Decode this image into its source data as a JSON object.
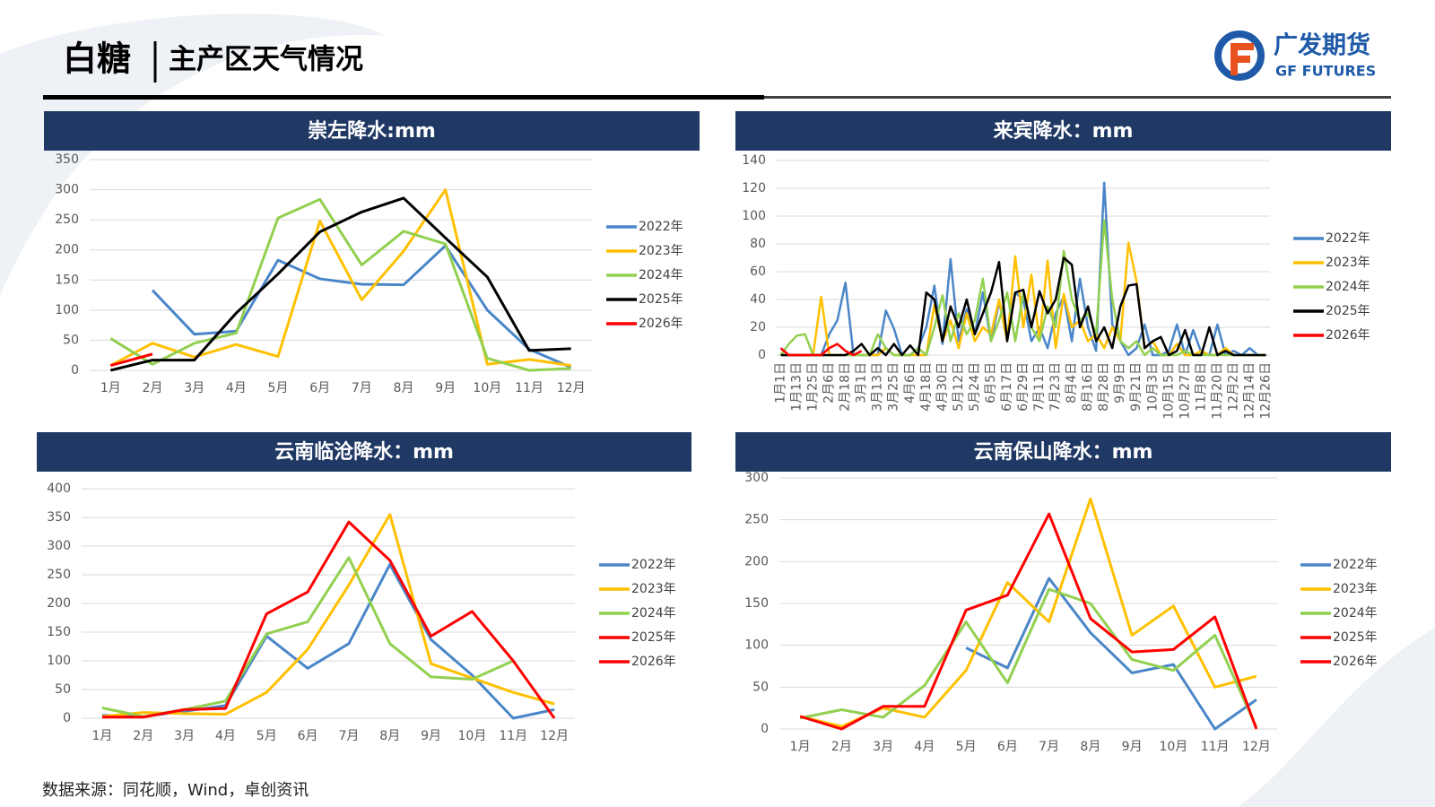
{
  "header": {
    "title": "白糖",
    "subtitle": "主产区天气情况",
    "logo": "广发期货",
    "logo_en": "GF FUTURES"
  },
  "source": "数据来源：同花顺，Wind，卓创资讯",
  "chart_data": [
    {
      "type": "line",
      "title": "崇左降水:mm",
      "categories": [
        "1月",
        "2月",
        "3月",
        "4月",
        "5月",
        "6月",
        "7月",
        "8月",
        "9月",
        "10月",
        "11月",
        "12月"
      ],
      "ylim": [
        0,
        350
      ],
      "yticks": [
        0,
        50,
        100,
        150,
        200,
        250,
        300,
        350
      ],
      "grid": true,
      "legend": "right",
      "series": [
        {
          "name": "2022年",
          "color": "#4a86c8",
          "values": [
            null,
            133,
            60,
            65,
            183,
            152,
            143,
            142,
            207,
            100,
            35,
            5
          ]
        },
        {
          "name": "2023年",
          "color": "#ffc000",
          "values": [
            8,
            45,
            22,
            43,
            23,
            248,
            117,
            198,
            300,
            10,
            18,
            8
          ]
        },
        {
          "name": "2024年",
          "color": "#92d050",
          "values": [
            53,
            10,
            45,
            62,
            253,
            284,
            175,
            231,
            210,
            20,
            0,
            3
          ]
        },
        {
          "name": "2025年",
          "color": "#000000",
          "values": [
            0,
            17,
            17,
            95,
            160,
            230,
            263,
            286,
            220,
            155,
            33,
            36
          ]
        },
        {
          "name": "2026年",
          "color": "#ff0000",
          "values": [
            8,
            27,
            null,
            null,
            null,
            null,
            null,
            null,
            null,
            null,
            null,
            null
          ]
        }
      ]
    },
    {
      "type": "line",
      "title": "来宾降水：mm",
      "categories": [
        "1月1日",
        null,
        "1月13日",
        null,
        "1月25日",
        null,
        "2月6日",
        null,
        "2月18日",
        null,
        "3月1日",
        null,
        "3月13日",
        null,
        "3月25日",
        null,
        "4月6日",
        null,
        "4月18日",
        null,
        "4月30日",
        null,
        "5月12日",
        null,
        "5月24日",
        null,
        "6月5日",
        null,
        "6月17日",
        null,
        "6月29日",
        null,
        "7月11日",
        null,
        "7月23日",
        null,
        "8月4日",
        null,
        "8月16日",
        null,
        "8月28日",
        null,
        "9月9日",
        null,
        "9月21日",
        null,
        "10月3日",
        null,
        "10月15日",
        null,
        "10月27日",
        null,
        "11月8日",
        null,
        "11月20日",
        null,
        "12月2日",
        null,
        "12月14日",
        null,
        "12月26日"
      ],
      "ylim": [
        0,
        140
      ],
      "yticks": [
        0,
        20,
        40,
        60,
        80,
        100,
        120,
        140
      ],
      "grid": true,
      "legend": "right",
      "series": [
        {
          "name": "2022年",
          "color": "#4a86c8",
          "values": [
            0,
            0,
            0,
            0,
            0,
            0,
            15,
            25,
            52,
            0,
            0,
            0,
            0,
            32,
            19,
            0,
            0,
            5,
            20,
            50,
            8,
            69,
            10,
            33,
            15,
            45,
            10,
            38,
            15,
            45,
            40,
            10,
            20,
            5,
            30,
            42,
            10,
            55,
            20,
            3,
            124,
            22,
            10,
            0,
            5,
            22,
            0,
            0,
            3,
            22,
            0,
            18,
            2,
            0,
            22,
            0,
            3,
            0,
            5,
            0,
            0
          ]
        },
        {
          "name": "2023年",
          "color": "#ffc000",
          "values": [
            0,
            0,
            0,
            0,
            0,
            42,
            0,
            0,
            0,
            0,
            0,
            0,
            0,
            5,
            0,
            0,
            0,
            0,
            0,
            36,
            10,
            25,
            5,
            30,
            10,
            20,
            15,
            40,
            10,
            71,
            20,
            58,
            10,
            68,
            5,
            44,
            20,
            25,
            10,
            15,
            5,
            20,
            10,
            81,
            53,
            5,
            10,
            0,
            0,
            8,
            0,
            0,
            3,
            0,
            0,
            5,
            0,
            0,
            0,
            0,
            0
          ]
        },
        {
          "name": "2024年",
          "color": "#92d050",
          "values": [
            0,
            8,
            14,
            15,
            0,
            0,
            0,
            0,
            0,
            0,
            0,
            0,
            15,
            5,
            0,
            0,
            0,
            5,
            0,
            20,
            43,
            10,
            30,
            15,
            25,
            55,
            10,
            25,
            45,
            10,
            45,
            20,
            10,
            35,
            20,
            75,
            40,
            25,
            30,
            15,
            97,
            40,
            10,
            5,
            10,
            0,
            5,
            0,
            0,
            0,
            3,
            0,
            0,
            0,
            0,
            0,
            0,
            0,
            0,
            0,
            0
          ]
        },
        {
          "name": "2025年",
          "color": "#000000",
          "values": [
            0,
            0,
            0,
            0,
            0,
            0,
            0,
            0,
            0,
            3,
            8,
            0,
            5,
            0,
            8,
            0,
            7,
            0,
            45,
            40,
            10,
            35,
            20,
            40,
            15,
            30,
            45,
            67,
            10,
            45,
            47,
            20,
            46,
            30,
            40,
            70,
            65,
            20,
            35,
            10,
            20,
            5,
            35,
            50,
            51,
            5,
            10,
            13,
            0,
            3,
            18,
            0,
            0,
            20,
            0,
            3,
            0,
            0,
            0,
            0,
            0
          ]
        },
        {
          "name": "2026年",
          "color": "#ff0000",
          "values": [
            5,
            0,
            0,
            0,
            0,
            0,
            5,
            8,
            3,
            0,
            3,
            null,
            null,
            null,
            null,
            null,
            null,
            null,
            null,
            null,
            null,
            null,
            null,
            null,
            null,
            null,
            null,
            null,
            null,
            null,
            null,
            null,
            null,
            null,
            null,
            null,
            null,
            null,
            null,
            null,
            null,
            null,
            null,
            null,
            null,
            null,
            null,
            null,
            null,
            null,
            null,
            null,
            null,
            null,
            null,
            null,
            null,
            null,
            null,
            null,
            null
          ]
        }
      ]
    },
    {
      "type": "line",
      "title": "云南临沧降水：mm",
      "categories": [
        "1月",
        "2月",
        "3月",
        "4月",
        "5月",
        "6月",
        "7月",
        "8月",
        "9月",
        "10月",
        "11月",
        "12月"
      ],
      "ylim": [
        0,
        400
      ],
      "yticks": [
        0,
        50,
        100,
        150,
        200,
        250,
        300,
        350,
        400
      ],
      "grid": true,
      "legend": "right",
      "series": [
        {
          "name": "2022年",
          "color": "#4a86c8",
          "values": [
            5,
            3,
            12,
            22,
            143,
            87,
            130,
            268,
            137,
            75,
            0,
            15
          ]
        },
        {
          "name": "2023年",
          "color": "#ffc000",
          "values": [
            3,
            10,
            8,
            7,
            45,
            120,
            232,
            355,
            95,
            70,
            45,
            25
          ]
        },
        {
          "name": "2024年",
          "color": "#92d050",
          "values": [
            18,
            3,
            15,
            30,
            147,
            168,
            280,
            130,
            72,
            68,
            100,
            null
          ]
        },
        {
          "name": "2025年",
          "color": "#ff0000",
          "values": [
            2,
            2,
            15,
            17,
            182,
            220,
            342,
            275,
            143,
            186,
            100,
            0
          ]
        },
        {
          "name": "2026年",
          "color": "#ff0000",
          "values": [
            5,
            null,
            null,
            null,
            null,
            null,
            null,
            null,
            null,
            null,
            null,
            null
          ]
        }
      ]
    },
    {
      "type": "line",
      "title": "云南保山降水：mm",
      "categories": [
        "1月",
        "2月",
        "3月",
        "4月",
        "5月",
        "6月",
        "7月",
        "8月",
        "9月",
        "10月",
        "11月",
        "12月"
      ],
      "ylim": [
        0,
        300
      ],
      "yticks": [
        0,
        50,
        100,
        150,
        200,
        250,
        300
      ],
      "grid": true,
      "legend": "right",
      "series": [
        {
          "name": "2022年",
          "color": "#4a86c8",
          "values": [
            null,
            null,
            null,
            null,
            97,
            73,
            180,
            115,
            67,
            77,
            0,
            35
          ]
        },
        {
          "name": "2023年",
          "color": "#ffc000",
          "values": [
            15,
            3,
            25,
            14,
            70,
            175,
            128,
            275,
            112,
            147,
            50,
            63
          ]
        },
        {
          "name": "2024年",
          "color": "#92d050",
          "values": [
            13,
            23,
            14,
            52,
            128,
            55,
            167,
            150,
            83,
            70,
            112,
            2
          ]
        },
        {
          "name": "2025年",
          "color": "#ff0000",
          "values": [
            15,
            0,
            27,
            27,
            142,
            160,
            257,
            132,
            92,
            95,
            134,
            0
          ]
        },
        {
          "name": "2026年",
          "color": "#ff0000",
          "values": [
            1,
            null,
            null,
            null,
            null,
            null,
            null,
            null,
            null,
            null,
            null,
            null
          ]
        }
      ]
    }
  ]
}
